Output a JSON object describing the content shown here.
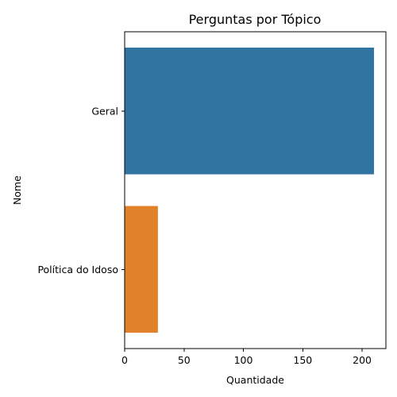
{
  "chart_data": {
    "type": "bar",
    "orientation": "horizontal",
    "title": "Perguntas por Tópico",
    "xlabel": "Quantidade",
    "ylabel": "Nome",
    "categories": [
      "Geral",
      "Política do Idoso"
    ],
    "values": [
      210,
      28
    ],
    "colors": [
      "#3274a1",
      "#e1812c"
    ],
    "xlim": [
      0,
      220
    ],
    "xticks": [
      0,
      50,
      100,
      150,
      200
    ],
    "grid": false,
    "legend": "none"
  }
}
